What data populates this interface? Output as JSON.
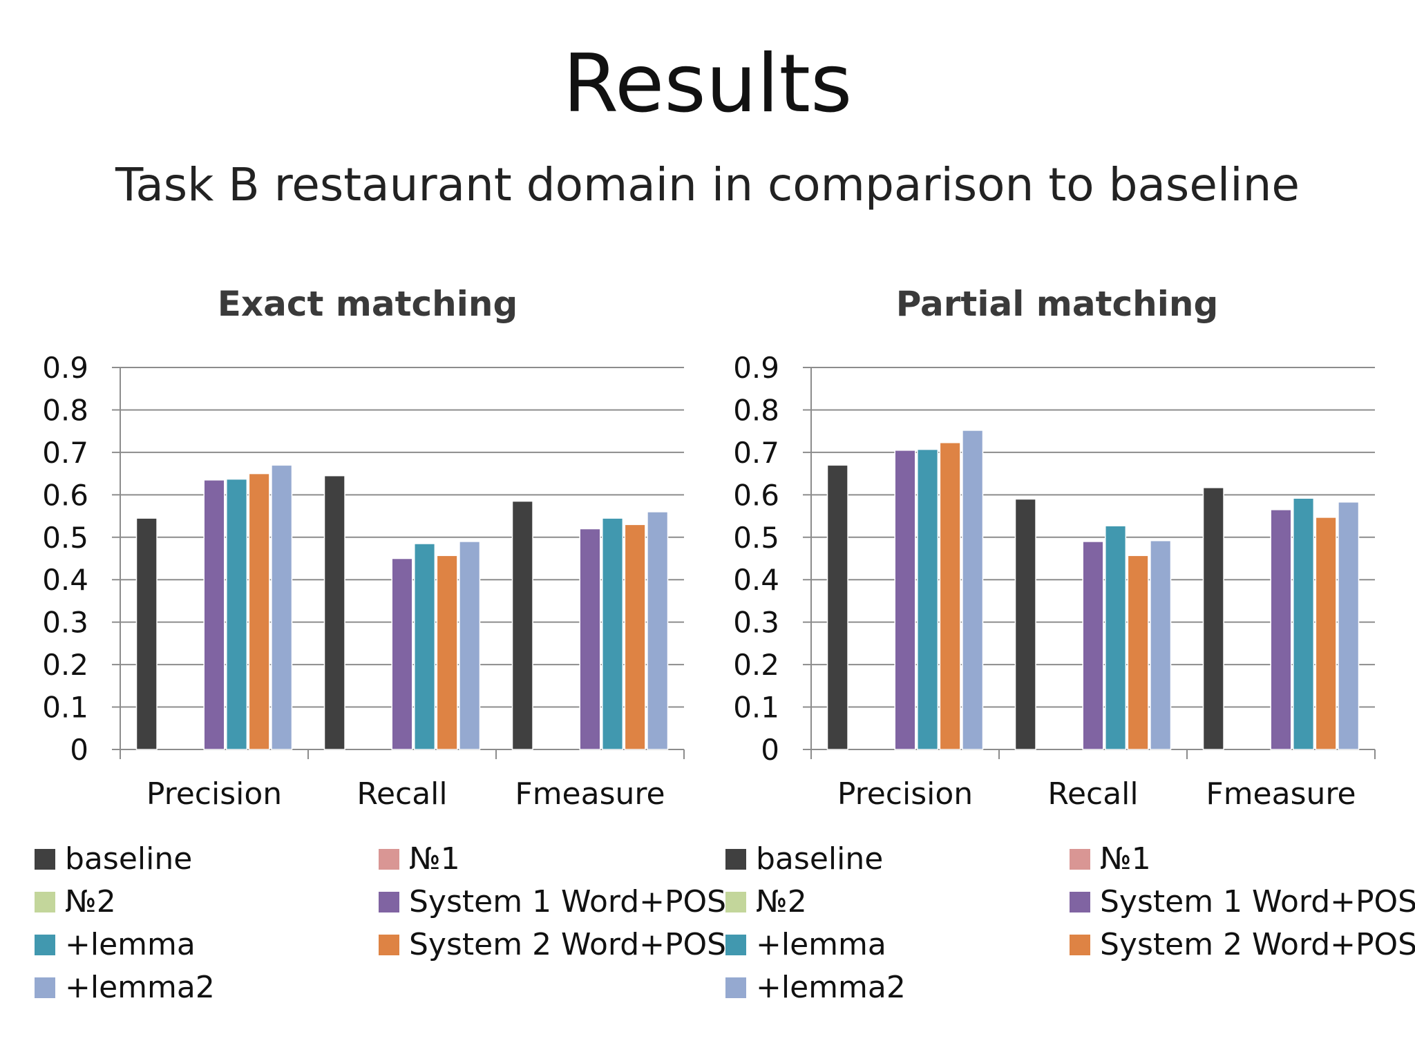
{
  "title": "Results",
  "subtitle": "Task B restaurant domain in comparison to baseline",
  "colors": {
    "baseline": "#404040",
    "no1": "#d99694",
    "no2": "#c3d69b",
    "system1": "#8064a2",
    "lemma": "#4198af",
    "system2": "#de8344",
    "lemma2": "#95a9d0",
    "grid": "#8c8c8c"
  },
  "legend": [
    {
      "key": "baseline",
      "label": "baseline"
    },
    {
      "key": "no1",
      "label": "№1"
    },
    {
      "key": "no2",
      "label": "№2"
    },
    {
      "key": "system1",
      "label": "System 1 Word+POS"
    },
    {
      "key": "lemma",
      "label": "+lemma"
    },
    {
      "key": "system2",
      "label": "System 2 Word+POS"
    },
    {
      "key": "lemma2",
      "label": "+lemma2"
    }
  ],
  "chart_data": [
    {
      "type": "bar",
      "title": "Exact matching",
      "categories": [
        "Precision",
        "Recall",
        "Fmeasure"
      ],
      "ylim": [
        0,
        0.9
      ],
      "yticks": [
        "0",
        "0.1",
        "0.2",
        "0.3",
        "0.4",
        "0.5",
        "0.6",
        "0.7",
        "0.8",
        "0.9"
      ],
      "grid": true,
      "legend_position": "bottom",
      "series": [
        {
          "name": "baseline",
          "key": "baseline",
          "values": [
            0.545,
            0.645,
            0.585
          ]
        },
        {
          "name": "№1",
          "key": "no1",
          "values": [
            0,
            0,
            0
          ]
        },
        {
          "name": "№2",
          "key": "no2",
          "values": [
            0,
            0,
            0
          ]
        },
        {
          "name": "System 1 Word+POS",
          "key": "system1",
          "values": [
            0.635,
            0.45,
            0.52
          ]
        },
        {
          "name": "+lemma",
          "key": "lemma",
          "values": [
            0.637,
            0.485,
            0.545
          ]
        },
        {
          "name": "System 2 Word+POS",
          "key": "system2",
          "values": [
            0.65,
            0.457,
            0.53
          ]
        },
        {
          "name": "+lemma2",
          "key": "lemma2",
          "values": [
            0.67,
            0.49,
            0.56
          ]
        }
      ]
    },
    {
      "type": "bar",
      "title": "Partial matching",
      "categories": [
        "Precision",
        "Recall",
        "Fmeasure"
      ],
      "ylim": [
        0,
        0.9
      ],
      "yticks": [
        "0",
        "0.1",
        "0.2",
        "0.3",
        "0.4",
        "0.5",
        "0.6",
        "0.7",
        "0.8",
        "0.9"
      ],
      "grid": true,
      "legend_position": "bottom",
      "series": [
        {
          "name": "baseline",
          "key": "baseline",
          "values": [
            0.67,
            0.59,
            0.617
          ]
        },
        {
          "name": "№1",
          "key": "no1",
          "values": [
            0,
            0,
            0
          ]
        },
        {
          "name": "№2",
          "key": "no2",
          "values": [
            0,
            0,
            0
          ]
        },
        {
          "name": "System 1 Word+POS",
          "key": "system1",
          "values": [
            0.705,
            0.49,
            0.565
          ]
        },
        {
          "name": "+lemma",
          "key": "lemma",
          "values": [
            0.707,
            0.527,
            0.592
          ]
        },
        {
          "name": "System 2 Word+POS",
          "key": "system2",
          "values": [
            0.723,
            0.457,
            0.547
          ]
        },
        {
          "name": "+lemma2",
          "key": "lemma2",
          "values": [
            0.752,
            0.492,
            0.583
          ]
        }
      ]
    }
  ]
}
